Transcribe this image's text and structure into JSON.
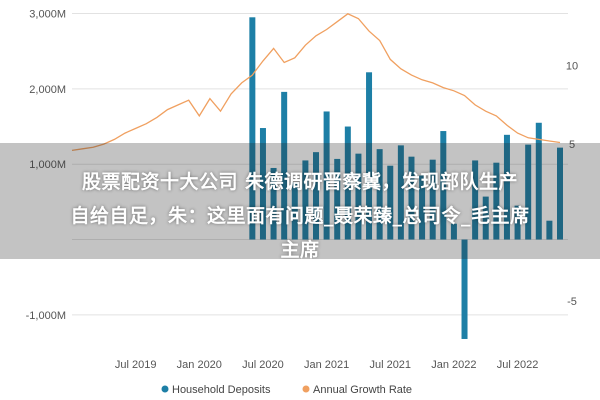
{
  "chart_data": {
    "type": "bar+line",
    "y_left_ticks": [
      "3,000M",
      "2,000M",
      "1,000M",
      "-1,000M"
    ],
    "y_left_tick_values": [
      3000,
      2000,
      1000,
      -1000
    ],
    "y_left_range": [
      -1400,
      3100
    ],
    "y_right_ticks": [
      "10",
      "5",
      "-5"
    ],
    "y_right_tick_values": [
      10,
      5,
      -5
    ],
    "y_right_range": [
      -7.8,
      13.8
    ],
    "x_ticks": [
      "Jul 2019",
      "Jan 2020",
      "Jul 2020",
      "Jan 2021",
      "Jul 2021",
      "Jan 2022",
      "Jul 2022"
    ],
    "x_tick_indices": [
      6,
      12,
      18,
      24,
      30,
      36,
      42
    ],
    "x_count": 47,
    "series": [
      {
        "name": "Household Deposits",
        "kind": "bar",
        "color": "#1d7fa6",
        "values": [
          null,
          null,
          null,
          null,
          null,
          null,
          null,
          null,
          null,
          null,
          null,
          null,
          null,
          null,
          null,
          null,
          null,
          2950,
          1480,
          950,
          1960,
          760,
          1050,
          1160,
          1700,
          1070,
          1500,
          1140,
          2220,
          1200,
          980,
          1250,
          1100,
          850,
          1060,
          1440,
          210,
          -1320,
          1050,
          570,
          1020,
          1390,
          450,
          1260,
          1550,
          250,
          1220
        ]
      },
      {
        "name": "Annual Growth Rate",
        "kind": "line",
        "color": "#f0a060",
        "values": [
          4.6,
          4.7,
          4.8,
          5.0,
          5.3,
          5.7,
          6.0,
          6.3,
          6.7,
          7.2,
          7.5,
          7.8,
          6.8,
          7.9,
          7.1,
          8.2,
          8.9,
          9.4,
          10.3,
          11.1,
          10.2,
          10.5,
          11.3,
          11.9,
          12.3,
          12.8,
          13.3,
          13.0,
          12.2,
          11.6,
          10.4,
          9.8,
          9.4,
          9.1,
          8.9,
          8.6,
          8.4,
          8.1,
          7.5,
          7.1,
          6.8,
          6.2,
          5.7,
          5.4,
          5.3,
          5.2,
          5.1
        ]
      }
    ],
    "legend_position": "bottom",
    "grid": true
  },
  "legend": {
    "deposits_label": "Household Deposits",
    "growth_label": "Annual Growth Rate"
  },
  "overlay": {
    "line1": "股票配资十大公司 朱德调研晋察冀，发现部队生产",
    "line2": "自给自足，朱：这里面有问题_聂荣臻_总司令_毛主席",
    "line3": "主席"
  }
}
